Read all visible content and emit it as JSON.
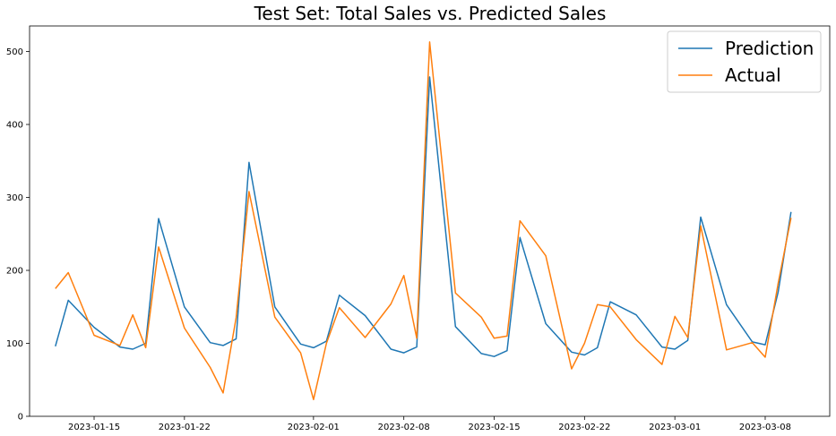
{
  "chart_data": {
    "type": "line",
    "title": "Test Set: Total Sales vs. Predicted Sales",
    "xlabel": "",
    "ylabel": "",
    "x_axis_type": "date",
    "xlim": [
      "2023-01-10",
      "2023-03-13"
    ],
    "ylim": [
      0,
      535
    ],
    "grid": false,
    "legend_position": "top-right",
    "x_ticks": [
      "2023-01-15",
      "2023-01-22",
      "2023-02-01",
      "2023-02-08",
      "2023-02-15",
      "2023-02-22",
      "2023-03-01",
      "2023-03-08"
    ],
    "y_ticks": [
      0,
      100,
      200,
      300,
      400,
      500
    ],
    "series": [
      {
        "name": "Prediction",
        "color": "#1f77b4",
        "points": [
          [
            "2023-01-12",
            96
          ],
          [
            "2023-01-13",
            159
          ],
          [
            "2023-01-15",
            122
          ],
          [
            "2023-01-17",
            95
          ],
          [
            "2023-01-18",
            92
          ],
          [
            "2023-01-19",
            100
          ],
          [
            "2023-01-20",
            271
          ],
          [
            "2023-01-22",
            150
          ],
          [
            "2023-01-24",
            101
          ],
          [
            "2023-01-25",
            97
          ],
          [
            "2023-01-26",
            106
          ],
          [
            "2023-01-27",
            348
          ],
          [
            "2023-01-29",
            150
          ],
          [
            "2023-01-31",
            99
          ],
          [
            "2023-02-01",
            94
          ],
          [
            "2023-02-02",
            103
          ],
          [
            "2023-02-03",
            166
          ],
          [
            "2023-02-05",
            138
          ],
          [
            "2023-02-07",
            92
          ],
          [
            "2023-02-08",
            87
          ],
          [
            "2023-02-09",
            95
          ],
          [
            "2023-02-10",
            465
          ],
          [
            "2023-02-12",
            123
          ],
          [
            "2023-02-14",
            86
          ],
          [
            "2023-02-15",
            82
          ],
          [
            "2023-02-16",
            90
          ],
          [
            "2023-02-17",
            245
          ],
          [
            "2023-02-19",
            127
          ],
          [
            "2023-02-21",
            88
          ],
          [
            "2023-02-22",
            84
          ],
          [
            "2023-02-23",
            94
          ],
          [
            "2023-02-24",
            157
          ],
          [
            "2023-02-26",
            139
          ],
          [
            "2023-02-28",
            95
          ],
          [
            "2023-03-01",
            92
          ],
          [
            "2023-03-02",
            104
          ],
          [
            "2023-03-03",
            273
          ],
          [
            "2023-03-05",
            153
          ],
          [
            "2023-03-07",
            102
          ],
          [
            "2023-03-08",
            98
          ],
          [
            "2023-03-09",
            170
          ],
          [
            "2023-03-10",
            280
          ]
        ]
      },
      {
        "name": "Actual",
        "color": "#ff7f0e",
        "points": [
          [
            "2023-01-12",
            175
          ],
          [
            "2023-01-13",
            197
          ],
          [
            "2023-01-15",
            111
          ],
          [
            "2023-01-17",
            97
          ],
          [
            "2023-01-18",
            139
          ],
          [
            "2023-01-19",
            94
          ],
          [
            "2023-01-20",
            232
          ],
          [
            "2023-01-22",
            121
          ],
          [
            "2023-01-24",
            67
          ],
          [
            "2023-01-25",
            32
          ],
          [
            "2023-01-26",
            135
          ],
          [
            "2023-01-27",
            308
          ],
          [
            "2023-01-29",
            136
          ],
          [
            "2023-01-31",
            87
          ],
          [
            "2023-02-01",
            23
          ],
          [
            "2023-02-02",
            100
          ],
          [
            "2023-02-03",
            149
          ],
          [
            "2023-02-05",
            108
          ],
          [
            "2023-02-07",
            154
          ],
          [
            "2023-02-08",
            193
          ],
          [
            "2023-02-09",
            107
          ],
          [
            "2023-02-10",
            513
          ],
          [
            "2023-02-12",
            169
          ],
          [
            "2023-02-14",
            136
          ],
          [
            "2023-02-15",
            107
          ],
          [
            "2023-02-16",
            110
          ],
          [
            "2023-02-17",
            268
          ],
          [
            "2023-02-19",
            220
          ],
          [
            "2023-02-21",
            65
          ],
          [
            "2023-02-22",
            100
          ],
          [
            "2023-02-23",
            153
          ],
          [
            "2023-02-24",
            150
          ],
          [
            "2023-02-26",
            105
          ],
          [
            "2023-02-28",
            71
          ],
          [
            "2023-03-01",
            137
          ],
          [
            "2023-03-02",
            108
          ],
          [
            "2023-03-03",
            261
          ],
          [
            "2023-03-05",
            91
          ],
          [
            "2023-03-07",
            101
          ],
          [
            "2023-03-08",
            81
          ],
          [
            "2023-03-09",
            182
          ],
          [
            "2023-03-10",
            272
          ]
        ]
      }
    ]
  }
}
